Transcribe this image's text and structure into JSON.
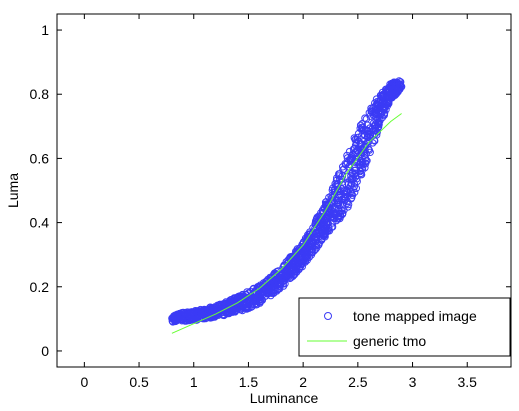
{
  "chart_data": {
    "type": "scatter",
    "title": "",
    "xlabel": "Luminance",
    "ylabel": "Luma",
    "xlim": [
      -0.25,
      3.9
    ],
    "ylim": [
      -0.05,
      1.05
    ],
    "xticks": [
      0,
      0.5,
      1,
      1.5,
      2,
      2.5,
      3,
      3.5
    ],
    "xtick_labels": [
      "0",
      "0.5",
      "1",
      "1.5",
      "2",
      "2.5",
      "3",
      "3.5"
    ],
    "yticks": [
      0,
      0.2,
      0.4,
      0.6,
      0.8,
      1
    ],
    "ytick_labels": [
      "0",
      "0.2",
      "0.4",
      "0.6",
      "0.8",
      "1"
    ],
    "grid": false,
    "legend_position": "bottom-right",
    "series": [
      {
        "name": "tone mapped image",
        "kind": "scatter",
        "marker": "circle-open",
        "color": "#3b3bf5",
        "x_range": [
          0.8,
          2.9
        ],
        "envelope": {
          "x": [
            0.8,
            1.0,
            1.2,
            1.4,
            1.6,
            1.8,
            2.0,
            2.2,
            2.4,
            2.5,
            2.6,
            2.7,
            2.8,
            2.9
          ],
          "lower": [
            0.09,
            0.095,
            0.105,
            0.12,
            0.145,
            0.195,
            0.265,
            0.355,
            0.44,
            0.51,
            0.6,
            0.7,
            0.78,
            0.82
          ],
          "upper": [
            0.115,
            0.125,
            0.14,
            0.17,
            0.205,
            0.26,
            0.34,
            0.46,
            0.61,
            0.69,
            0.75,
            0.8,
            0.835,
            0.845
          ]
        }
      },
      {
        "name": "generic tmo",
        "kind": "line",
        "color": "#66ff33",
        "x": [
          0.8,
          1.0,
          1.2,
          1.4,
          1.6,
          1.8,
          2.0,
          2.2,
          2.4,
          2.6,
          2.8,
          2.9
        ],
        "y": [
          0.055,
          0.085,
          0.115,
          0.15,
          0.195,
          0.255,
          0.33,
          0.435,
          0.555,
          0.65,
          0.715,
          0.74
        ]
      }
    ]
  }
}
